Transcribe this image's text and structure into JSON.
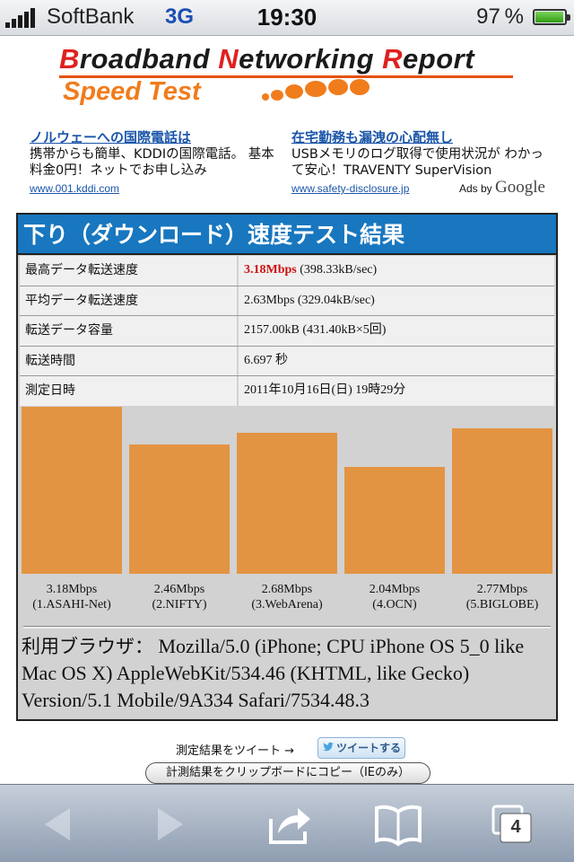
{
  "status_bar": {
    "carrier": "SoftBank",
    "network": "3G",
    "time": "19:30",
    "battery": "97 %",
    "battery_level": 0.97
  },
  "logo": {
    "title_parts": [
      "B",
      "roadband ",
      "N",
      "etworking ",
      "R",
      "eport"
    ],
    "subtitle": "Speed Test"
  },
  "ads": [
    {
      "headline": "ノルウェーへの国際電話は",
      "body": "携帯からも簡単、KDDIの国際電話。 基本料金0円！ネットでお申し込み",
      "url": "www.001.kddi.com"
    },
    {
      "headline": "在宅勤務も漏洩の心配無し",
      "body": "USBメモリのログ取得で使用状況が わかって安心！TRAVENTY SuperVision",
      "url": "www.safety-disclosure.jp"
    }
  ],
  "ads_by": {
    "prefix": "Ads by ",
    "brand": "Google"
  },
  "result": {
    "title": "下り（ダウンロード）速度テスト結果",
    "rows": [
      {
        "label": "最高データ転送速度",
        "value_highlight": "3.18Mbps",
        "value": " (398.33kB/sec)"
      },
      {
        "label": "平均データ転送速度",
        "value_highlight": "",
        "value": "2.63Mbps (329.04kB/sec)"
      },
      {
        "label": "転送データ容量",
        "value_highlight": "",
        "value": "2157.00kB (431.40kB×5回)"
      },
      {
        "label": "転送時間",
        "value_highlight": "",
        "value": "6.697 秒"
      },
      {
        "label": "測定日時",
        "value_highlight": "",
        "value": "2011年10月16日(日) 19時29分"
      }
    ],
    "browser_prefix": "利用ブラウザ：",
    "browser_value": " Mozilla/5.0 (iPhone; CPU iPhone OS 5_0 like Mac OS X) AppleWebKit/534.46 (KHTML, like Gecko) Version/5.1 Mobile/9A334 Safari/7534.48.3"
  },
  "chart_data": {
    "type": "bar",
    "categories": [
      "1.ASAHI-Net",
      "2.NIFTY",
      "3.WebArena",
      "4.OCN",
      "5.BIGLOBE"
    ],
    "values": [
      3.18,
      2.46,
      2.68,
      2.04,
      2.77
    ],
    "value_labels": [
      "3.18Mbps",
      "2.46Mbps",
      "2.68Mbps",
      "2.04Mbps",
      "2.77Mbps"
    ],
    "category_labels": [
      "(1.ASAHI-Net)",
      "(2.NIFTY)",
      "(3.WebArena)",
      "(4.OCN)",
      "(5.BIGLOBE)"
    ],
    "bar_color": "#e39442",
    "ylim": [
      0,
      3.18
    ]
  },
  "actions": {
    "tweet_text": "測定結果をツイート →",
    "tweet_button": "ツイートする",
    "copy_button": "計測結果をクリップボードにコピー（IEのみ）"
  },
  "toolbar": {
    "tabs_count": "4"
  }
}
